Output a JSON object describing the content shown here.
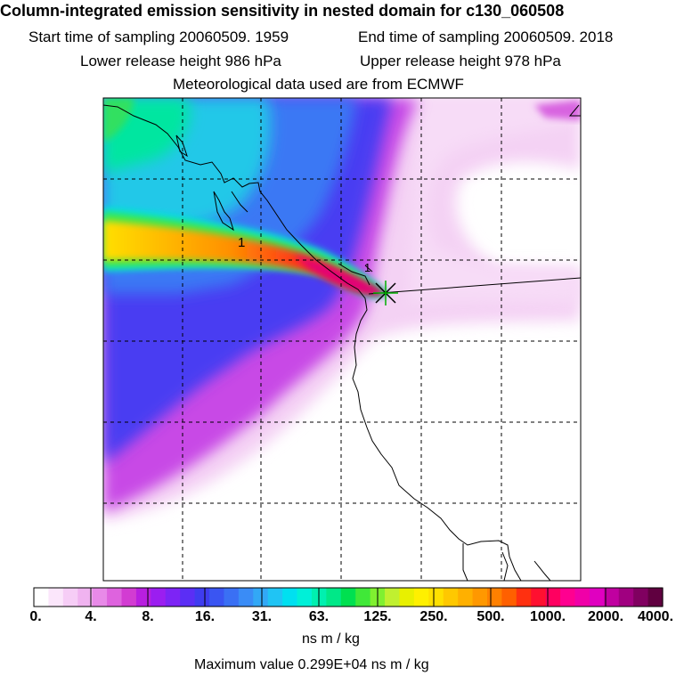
{
  "header": {
    "title": "Column-integrated emission sensitivity in nested domain for c130_060508",
    "start_time": "Start time of sampling 20060509.  1959",
    "end_time": "End time of sampling 20060509.  2018",
    "lower_release": "Lower release height  986 hPa",
    "upper_release": "Upper release height  978 hPa",
    "met_data": "Meteorological data used are from ECMWF"
  },
  "map": {
    "contour_label": "1",
    "contour_label_2": "1",
    "release_marker": "release-point"
  },
  "colorbar": {
    "tick_labels": [
      "0.",
      "4.",
      "8.",
      "16.",
      "31.",
      "63.",
      "125.",
      "250.",
      "500.",
      "1000.",
      "2000.",
      "4000."
    ],
    "colors": [
      "#ffffff",
      "#fbe6fb",
      "#f6cdf6",
      "#f0b3f0",
      "#e88ae8",
      "#de63de",
      "#d23cd2",
      "#b81fe0",
      "#9b1ef0",
      "#7d24f5",
      "#5b2ef5",
      "#3f3cf0",
      "#3a55f2",
      "#3a70f4",
      "#3a8cf6",
      "#32a8f6",
      "#20c4f4",
      "#00e0f0",
      "#00f0d8",
      "#00f0b0",
      "#00e888",
      "#00e050",
      "#40e838",
      "#80f030",
      "#c0f030",
      "#e8f000",
      "#fff000",
      "#ffe000",
      "#ffc800",
      "#ffb000",
      "#ff9800",
      "#ff8000",
      "#ff6000",
      "#ff3010",
      "#ff1030",
      "#ff0060",
      "#ff0090",
      "#f000a8",
      "#e000c0",
      "#c000a0",
      "#a00080",
      "#800060",
      "#600040"
    ],
    "units": "ns m / kg"
  },
  "footer": {
    "max_value": "Maximum value  0.299E+04 ns m / kg"
  }
}
